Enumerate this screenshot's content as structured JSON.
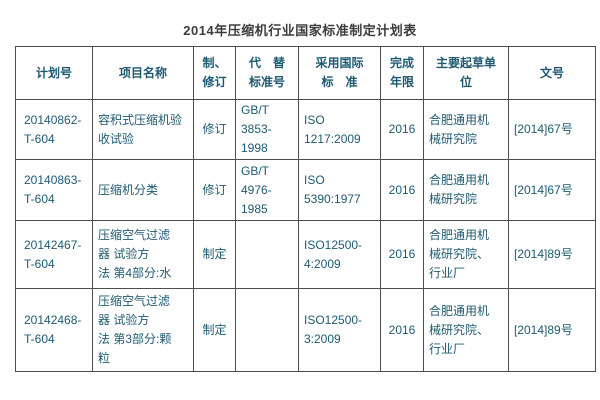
{
  "page": {
    "title": "2014年压缩机行业国家标准制定计划表"
  },
  "colors": {
    "text": "#1f5a72",
    "title": "#3d3d3d",
    "border": "#4d4d4d",
    "background": "#ffffff"
  },
  "table": {
    "headers": [
      {
        "label": "计划号"
      },
      {
        "label": "项目名称"
      },
      {
        "label": "制、\n修订"
      },
      {
        "label": "代　替\n标准号"
      },
      {
        "label": "采用国际\n标　准"
      },
      {
        "label": "完成\n年限"
      },
      {
        "label": "主要起草单\n位"
      },
      {
        "label": "文号"
      }
    ],
    "rows": [
      {
        "plan_no": "20140862-\nT-604",
        "project_name": "容积式压缩机验\n收试验",
        "type": "修订",
        "replaced_standard": "GB/T\n3853-\n1998",
        "intl_standard": "ISO\n1217:2009",
        "deadline": "2016",
        "drafting_unit": "合肥通用机\n械研究院",
        "doc_no": "[2014]67号"
      },
      {
        "plan_no": "20140863-\nT-604",
        "project_name": "压缩机分类",
        "type": "修订",
        "replaced_standard": "GB/T\n4976-\n1985",
        "intl_standard": "ISO\n5390:1977",
        "deadline": "2016",
        "drafting_unit": "合肥通用机\n械研究院",
        "doc_no": "[2014]67号"
      },
      {
        "plan_no": "20142467-\nT-604",
        "project_name": "压缩空气过滤\n器 试验方\n法 第4部分:水",
        "type": "制定",
        "replaced_standard": "",
        "intl_standard": "ISO12500-\n4:2009",
        "deadline": "2016",
        "drafting_unit": "合肥通用机\n械研究院、\n行业厂",
        "doc_no": "[2014]89号"
      },
      {
        "plan_no": "20142468-\nT-604",
        "project_name": "压缩空气过滤\n器 试验方\n法 第3部分:颗\n粒",
        "type": "制定",
        "replaced_standard": "",
        "intl_standard": "ISO12500-\n3:2009",
        "deadline": "2016",
        "drafting_unit": "合肥通用机\n械研究院、\n行业厂",
        "doc_no": "[2014]89号"
      }
    ]
  }
}
